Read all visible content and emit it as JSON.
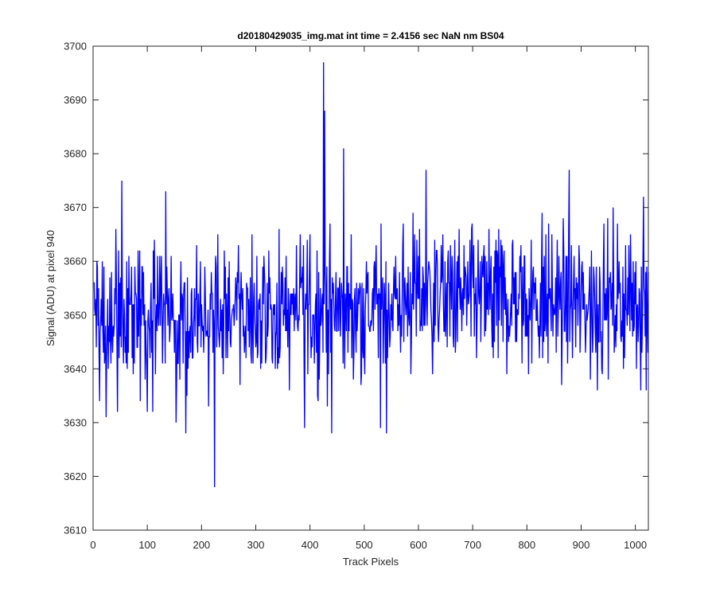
{
  "chart_data": {
    "type": "line",
    "title": "d20180429035_img.mat int time = 2.4156 sec  NaN nm BS04",
    "xlabel": "Track Pixels",
    "ylabel": "Signal (ADU) at pixel 940",
    "xlim": [
      0,
      1024
    ],
    "ylim": [
      3610,
      3700
    ],
    "xticks": [
      0,
      100,
      200,
      300,
      400,
      500,
      600,
      700,
      800,
      900,
      1000
    ],
    "yticks": [
      3610,
      3620,
      3630,
      3640,
      3650,
      3660,
      3670,
      3680,
      3690,
      3700
    ],
    "grid": false,
    "legend": "none",
    "series": [
      {
        "color": "#0000ff",
        "x_start": 1,
        "x_step": 1,
        "baseline": [
          [
            0,
            3650
          ],
          [
            200,
            3650
          ],
          [
            400,
            3651
          ],
          [
            500,
            3651
          ],
          [
            600,
            3654
          ],
          [
            700,
            3653
          ],
          [
            800,
            3653
          ],
          [
            900,
            3652
          ],
          [
            1024,
            3653
          ]
        ],
        "noise_std": 6.5,
        "notable_points": [
          {
            "x": 12,
            "y": 3634
          },
          {
            "x": 24,
            "y": 3631
          },
          {
            "x": 45,
            "y": 3632
          },
          {
            "x": 53,
            "y": 3675
          },
          {
            "x": 100,
            "y": 3632
          },
          {
            "x": 110,
            "y": 3632
          },
          {
            "x": 134,
            "y": 3673
          },
          {
            "x": 171,
            "y": 3628
          },
          {
            "x": 224,
            "y": 3618
          },
          {
            "x": 390,
            "y": 3629
          },
          {
            "x": 425,
            "y": 3697
          },
          {
            "x": 427,
            "y": 3688
          },
          {
            "x": 440,
            "y": 3628
          },
          {
            "x": 462,
            "y": 3681
          },
          {
            "x": 530,
            "y": 3629
          },
          {
            "x": 541,
            "y": 3628
          },
          {
            "x": 614,
            "y": 3677
          },
          {
            "x": 878,
            "y": 3677
          },
          {
            "x": 1015,
            "y": 3672
          },
          {
            "x": 1020,
            "y": 3636
          }
        ]
      }
    ]
  }
}
